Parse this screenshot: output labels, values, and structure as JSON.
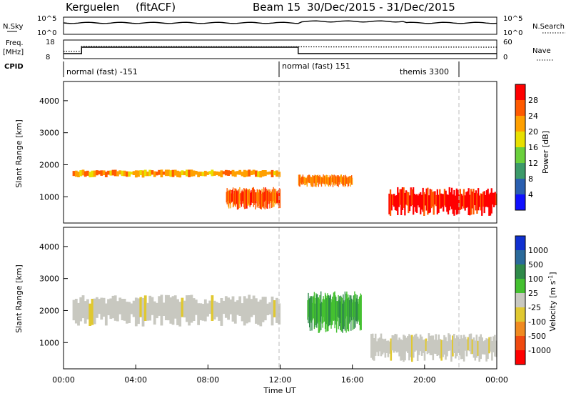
{
  "header": {
    "station": "Kerguelen",
    "method": "(fitACF)",
    "beam": "Beam 15",
    "date_range": "30/Dec/2015 - 31/Dec/2015"
  },
  "status_panels": {
    "nsky_label": "N.Sky",
    "nsky_ticks": [
      "10^5",
      "10^0"
    ],
    "nsearch_label": "N.Search",
    "nsearch_ticks": [
      "10^5",
      "10^0"
    ],
    "freq_label_1": "Freq.",
    "freq_label_2": "[MHz]",
    "freq_ticks": [
      "18",
      "8"
    ],
    "nave_label": "Nave",
    "nave_ticks": [
      "60",
      "0"
    ],
    "cpid_label": "CPID",
    "modes": [
      {
        "label": "normal (fast) -151"
      },
      {
        "label": "normal (fast) 151"
      },
      {
        "label": "themis 3300"
      }
    ]
  },
  "chart_data": [
    {
      "type": "heatmap",
      "panel": "power",
      "ylabel": "Slant Range [km]",
      "xlabel": "",
      "ylim": [
        180,
        4600
      ],
      "y_ticks": [
        "4000",
        "3000",
        "2000",
        "1000"
      ],
      "x_range_hours": [
        0,
        24
      ],
      "colorbar": {
        "label": "Power [dB]",
        "ticks": [
          "28",
          "24",
          "20",
          "16",
          "12",
          "8",
          "4"
        ],
        "colors": [
          "#ff0000",
          "#ff5a00",
          "#ffa000",
          "#e8e000",
          "#6ad03c",
          "#3c9a6a",
          "#2a5fb0",
          "#1010ff"
        ]
      },
      "echo_bands": [
        {
          "t_start": 0.5,
          "t_end": 12.0,
          "range_start": 1600,
          "range_end": 1850,
          "power_db": 20
        },
        {
          "t_start": 9.0,
          "t_end": 12.0,
          "range_start": 600,
          "range_end": 1300,
          "power_db": 24
        },
        {
          "t_start": 13.0,
          "t_end": 16.0,
          "range_start": 1300,
          "range_end": 1700,
          "power_db": 22
        },
        {
          "t_start": 18.0,
          "t_end": 24.0,
          "range_start": 400,
          "range_end": 1300,
          "power_db": 28
        }
      ]
    },
    {
      "type": "heatmap",
      "panel": "velocity",
      "ylabel": "Slant Range [km]",
      "xlabel": "Time UT",
      "ylim": [
        180,
        4600
      ],
      "y_ticks": [
        "4000",
        "3000",
        "2000",
        "1000"
      ],
      "x_ticks": [
        "00:00",
        "04:00",
        "08:00",
        "12:00",
        "16:00",
        "20:00",
        "00:00"
      ],
      "colorbar": {
        "label": "Velocity [m s",
        "label_sup": "-1",
        "label_end": "]",
        "ticks": [
          "1000",
          "500",
          "100",
          "25",
          "-25",
          "-100",
          "-500",
          "-1000"
        ],
        "colors": [
          "#1030d0",
          "#2a6a9a",
          "#2f8a4a",
          "#44c030",
          "#c8c8c0",
          "#e0c830",
          "#f08a20",
          "#f04a10",
          "#ff0000"
        ]
      },
      "echo_bands": [
        {
          "t_start": 0.5,
          "t_end": 12.0,
          "range_start": 1500,
          "range_end": 2500,
          "velocity": 0
        },
        {
          "t_start": 13.5,
          "t_end": 16.5,
          "range_start": 1300,
          "range_end": 2600,
          "velocity": 150
        },
        {
          "t_start": 17.0,
          "t_end": 24.0,
          "range_start": 400,
          "range_end": 1300,
          "velocity": 0
        }
      ]
    }
  ]
}
